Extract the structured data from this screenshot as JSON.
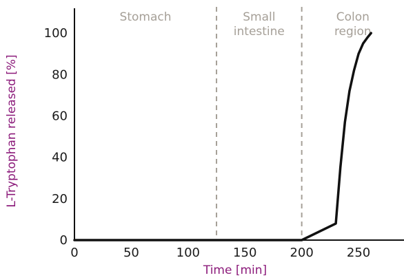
{
  "chart_data": {
    "type": "line",
    "title": "",
    "xlabel": "Time [min]",
    "ylabel": "L-Tryptophan released [%]",
    "xlim": [
      0,
      290
    ],
    "ylim": [
      0,
      112
    ],
    "xticks": [
      0,
      50,
      100,
      150,
      200,
      250
    ],
    "yticks": [
      0,
      20,
      40,
      60,
      80,
      100
    ],
    "grid": false,
    "colors": {
      "line": "#111111",
      "axis": "#111111",
      "axis_title": "#8b1a7a",
      "region_label": "#a59f97",
      "divider": "#a59f97"
    },
    "regions": [
      {
        "label_lines": [
          "Stomach"
        ],
        "x_start": 0,
        "x_end": 125
      },
      {
        "label_lines": [
          "Small",
          "intestine"
        ],
        "x_start": 125,
        "x_end": 200
      },
      {
        "label_lines": [
          "Colon",
          "region"
        ],
        "x_start": 200,
        "x_end": 290
      }
    ],
    "dividers": [
      125,
      200
    ],
    "series": [
      {
        "x": [
          0,
          200,
          230,
          234,
          238,
          242,
          246,
          250,
          254,
          258,
          261
        ],
        "y": [
          0,
          0,
          8,
          35,
          57,
          72,
          82,
          90,
          95,
          98,
          100
        ]
      }
    ]
  }
}
